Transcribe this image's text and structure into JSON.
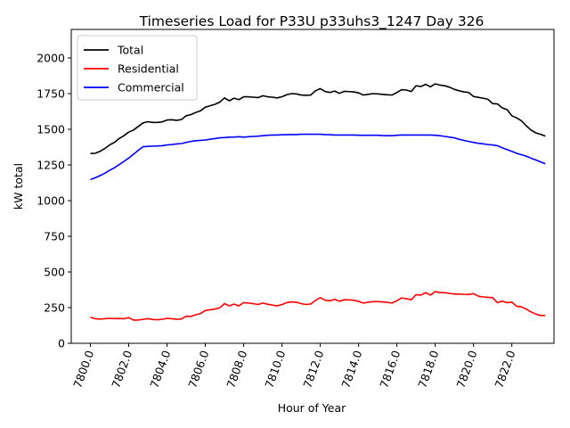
{
  "chart_data": {
    "type": "line",
    "title": "Timeseries Load for P33U p33uhs3_1247  Day 326",
    "xlabel": "Hour of Year",
    "ylabel": "kW total",
    "xlim": [
      7799.0,
      7824.2
    ],
    "ylim": [
      0,
      2200
    ],
    "xticks": [
      7800,
      7802,
      7804,
      7806,
      7808,
      7810,
      7812,
      7814,
      7816,
      7818,
      7820,
      7822
    ],
    "xtick_labels": [
      "7800.0",
      "7802.0",
      "7804.0",
      "7806.0",
      "7808.0",
      "7810.0",
      "7812.0",
      "7814.0",
      "7816.0",
      "7818.0",
      "7820.0",
      "7822.0"
    ],
    "yticks": [
      0,
      250,
      500,
      750,
      1000,
      1250,
      1500,
      1750,
      2000
    ],
    "ytick_labels": [
      "0",
      "250",
      "500",
      "750",
      "1000",
      "1250",
      "1500",
      "1750",
      "2000"
    ],
    "grid": false,
    "legend_position": "top-left",
    "x": [
      7800.0,
      7800.25,
      7800.5,
      7800.75,
      7801.0,
      7801.25,
      7801.5,
      7801.75,
      7802.0,
      7802.25,
      7802.5,
      7802.75,
      7803.0,
      7803.25,
      7803.5,
      7803.75,
      7804.0,
      7804.25,
      7804.5,
      7804.75,
      7805.0,
      7805.25,
      7805.5,
      7805.75,
      7806.0,
      7806.25,
      7806.5,
      7806.75,
      7807.0,
      7807.25,
      7807.5,
      7807.75,
      7808.0,
      7808.25,
      7808.5,
      7808.75,
      7809.0,
      7809.25,
      7809.5,
      7809.75,
      7810.0,
      7810.25,
      7810.5,
      7810.75,
      7811.0,
      7811.25,
      7811.5,
      7811.75,
      7812.0,
      7812.25,
      7812.5,
      7812.75,
      7813.0,
      7813.25,
      7813.5,
      7813.75,
      7814.0,
      7814.25,
      7814.5,
      7814.75,
      7815.0,
      7815.25,
      7815.5,
      7815.75,
      7816.0,
      7816.25,
      7816.5,
      7816.75,
      7817.0,
      7817.25,
      7817.5,
      7817.75,
      7818.0,
      7818.25,
      7818.5,
      7818.75,
      7819.0,
      7819.25,
      7819.5,
      7819.75,
      7820.0,
      7820.25,
      7820.5,
      7820.75,
      7821.0,
      7821.25,
      7821.5,
      7821.75,
      7822.0,
      7822.25,
      7822.5,
      7822.75,
      7823.0,
      7823.25,
      7823.5,
      7823.75
    ],
    "series": [
      {
        "name": "Total",
        "color": "#000000",
        "values": [
          1330,
          1332,
          1345,
          1365,
          1390,
          1408,
          1435,
          1455,
          1480,
          1495,
          1520,
          1545,
          1553,
          1548,
          1548,
          1552,
          1565,
          1567,
          1563,
          1568,
          1595,
          1603,
          1618,
          1630,
          1655,
          1665,
          1675,
          1690,
          1720,
          1700,
          1718,
          1708,
          1728,
          1728,
          1725,
          1722,
          1735,
          1728,
          1725,
          1720,
          1728,
          1742,
          1750,
          1748,
          1740,
          1738,
          1740,
          1770,
          1785,
          1765,
          1758,
          1768,
          1752,
          1766,
          1764,
          1762,
          1755,
          1740,
          1745,
          1750,
          1748,
          1745,
          1742,
          1740,
          1758,
          1778,
          1775,
          1765,
          1805,
          1800,
          1815,
          1798,
          1818,
          1810,
          1805,
          1795,
          1780,
          1770,
          1762,
          1758,
          1730,
          1724,
          1718,
          1710,
          1680,
          1678,
          1650,
          1638,
          1595,
          1580,
          1560,
          1525,
          1495,
          1475,
          1465,
          1452
        ]
      },
      {
        "name": "Residential",
        "color": "#ff0000",
        "values": [
          183,
          172,
          170,
          172,
          175,
          173,
          174,
          172,
          180,
          163,
          163,
          168,
          173,
          167,
          165,
          168,
          175,
          172,
          168,
          170,
          190,
          188,
          200,
          208,
          230,
          235,
          240,
          248,
          278,
          262,
          275,
          262,
          285,
          282,
          278,
          272,
          282,
          274,
          268,
          262,
          272,
          285,
          290,
          288,
          278,
          272,
          275,
          300,
          320,
          302,
          298,
          308,
          295,
          305,
          304,
          302,
          294,
          282,
          288,
          292,
          292,
          290,
          287,
          282,
          298,
          318,
          312,
          305,
          340,
          338,
          355,
          338,
          362,
          355,
          355,
          350,
          345,
          345,
          343,
          342,
          348,
          330,
          325,
          322,
          320,
          285,
          295,
          285,
          288,
          260,
          255,
          240,
          220,
          205,
          195,
          195
        ]
      },
      {
        "name": "Commercial",
        "color": "#0000ff",
        "values": [
          1148,
          1160,
          1175,
          1192,
          1212,
          1230,
          1252,
          1275,
          1298,
          1325,
          1352,
          1378,
          1380,
          1382,
          1383,
          1385,
          1390,
          1393,
          1397,
          1400,
          1408,
          1415,
          1420,
          1422,
          1425,
          1430,
          1435,
          1440,
          1442,
          1445,
          1446,
          1448,
          1445,
          1448,
          1450,
          1452,
          1455,
          1458,
          1460,
          1460,
          1462,
          1462,
          1463,
          1463,
          1465,
          1465,
          1465,
          1465,
          1465,
          1463,
          1462,
          1460,
          1460,
          1460,
          1460,
          1460,
          1458,
          1458,
          1458,
          1458,
          1458,
          1456,
          1455,
          1455,
          1458,
          1460,
          1460,
          1460,
          1460,
          1460,
          1460,
          1460,
          1458,
          1455,
          1450,
          1445,
          1440,
          1430,
          1422,
          1415,
          1408,
          1402,
          1398,
          1393,
          1390,
          1385,
          1370,
          1358,
          1345,
          1332,
          1322,
          1312,
          1298,
          1285,
          1272,
          1258
        ]
      }
    ]
  }
}
